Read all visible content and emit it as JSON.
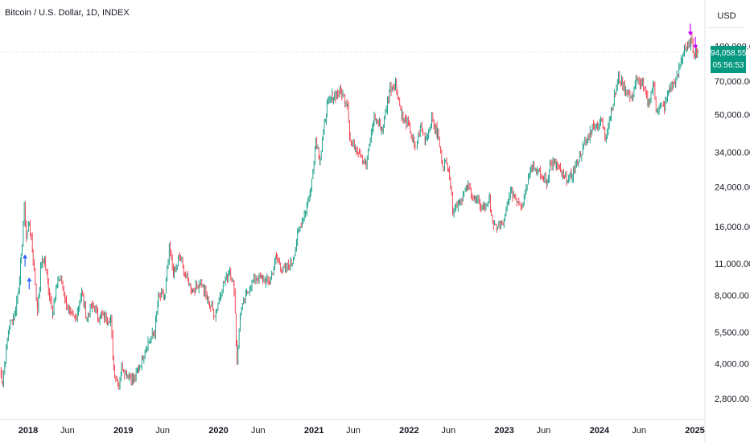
{
  "header": {
    "symbol_title": "Bitcoin / U.S. Dollar, 1D, INDEX",
    "currency": "USD"
  },
  "last_price": {
    "value": "94,058.55",
    "countdown": "05:56:53",
    "color": "#089981"
  },
  "colors": {
    "up": "#089981",
    "down": "#f23645",
    "marker_buy": "#2962ff",
    "marker_sell": "#c000ff"
  },
  "chart_data": {
    "type": "line",
    "scale": "log",
    "grid": false,
    "y_ticks": [
      {
        "value": 100000,
        "label": "100,000.00"
      },
      {
        "value": 70000,
        "label": "70,000.00"
      },
      {
        "value": 50000,
        "label": "50,000.00"
      },
      {
        "value": 34000,
        "label": "34,000.00"
      },
      {
        "value": 24000,
        "label": "24,000.00"
      },
      {
        "value": 16000,
        "label": "16,000.00"
      },
      {
        "value": 11000,
        "label": "11,000.00"
      },
      {
        "value": 8000,
        "label": "8,000.00"
      },
      {
        "value": 5500,
        "label": "5,500.00"
      },
      {
        "value": 4000,
        "label": "4,000.00"
      },
      {
        "value": 2800,
        "label": "2,800.00"
      }
    ],
    "x_ticks": [
      {
        "date": "2018-01-01",
        "label": "2018",
        "bold": true
      },
      {
        "date": "2018-06-01",
        "label": "Jun",
        "bold": false
      },
      {
        "date": "2019-01-01",
        "label": "2019",
        "bold": true
      },
      {
        "date": "2019-06-01",
        "label": "Jun",
        "bold": false
      },
      {
        "date": "2020-01-01",
        "label": "2020",
        "bold": true
      },
      {
        "date": "2020-06-01",
        "label": "Jun",
        "bold": false
      },
      {
        "date": "2021-01-01",
        "label": "2021",
        "bold": true
      },
      {
        "date": "2021-06-01",
        "label": "Jun",
        "bold": false
      },
      {
        "date": "2022-01-01",
        "label": "2022",
        "bold": true
      },
      {
        "date": "2022-06-01",
        "label": "Jun",
        "bold": false
      },
      {
        "date": "2023-01-01",
        "label": "2023",
        "bold": true
      },
      {
        "date": "2023-06-01",
        "label": "Jun",
        "bold": false
      },
      {
        "date": "2024-01-01",
        "label": "2024",
        "bold": true
      },
      {
        "date": "2024-06-01",
        "label": "Jun",
        "bold": false
      },
      {
        "date": "2025-01-01",
        "label": "2025",
        "bold": true
      }
    ],
    "x_range": [
      "2017-09-15",
      "2025-01-15"
    ],
    "y_range": [
      2400,
      125000
    ],
    "series": [
      {
        "points": [
          [
            "2017-09-15",
            3800
          ],
          [
            "2017-09-25",
            3300
          ],
          [
            "2017-10-05",
            4200
          ],
          [
            "2017-10-20",
            5900
          ],
          [
            "2017-11-10",
            6500
          ],
          [
            "2017-11-25",
            8600
          ],
          [
            "2017-12-05",
            11500
          ],
          [
            "2017-12-17",
            19500
          ],
          [
            "2017-12-25",
            14500
          ],
          [
            "2018-01-05",
            17000
          ],
          [
            "2018-01-20",
            11500
          ],
          [
            "2018-02-06",
            6900
          ],
          [
            "2018-02-20",
            11000
          ],
          [
            "2018-03-05",
            11400
          ],
          [
            "2018-03-20",
            8500
          ],
          [
            "2018-04-06",
            6800
          ],
          [
            "2018-04-25",
            9300
          ],
          [
            "2018-05-10",
            9300
          ],
          [
            "2018-05-28",
            7300
          ],
          [
            "2018-06-15",
            6400
          ],
          [
            "2018-07-01",
            6300
          ],
          [
            "2018-07-25",
            8200
          ],
          [
            "2018-08-15",
            6300
          ],
          [
            "2018-09-05",
            7300
          ],
          [
            "2018-09-25",
            6500
          ],
          [
            "2018-10-20",
            6450
          ],
          [
            "2018-11-14",
            6300
          ],
          [
            "2018-11-25",
            3800
          ],
          [
            "2018-12-15",
            3200
          ],
          [
            "2018-12-25",
            3900
          ],
          [
            "2019-01-15",
            3600
          ],
          [
            "2019-02-07",
            3400
          ],
          [
            "2019-03-01",
            3800
          ],
          [
            "2019-04-02",
            4900
          ],
          [
            "2019-05-01",
            5500
          ],
          [
            "2019-05-15",
            7800
          ],
          [
            "2019-06-10",
            8000
          ],
          [
            "2019-06-26",
            12800
          ],
          [
            "2019-07-15",
            9800
          ],
          [
            "2019-08-05",
            11800
          ],
          [
            "2019-08-28",
            9600
          ],
          [
            "2019-09-24",
            8400
          ],
          [
            "2019-10-25",
            9200
          ],
          [
            "2019-11-20",
            7600
          ],
          [
            "2019-12-18",
            6600
          ],
          [
            "2020-01-15",
            8700
          ],
          [
            "2020-02-13",
            10300
          ],
          [
            "2020-03-01",
            8600
          ],
          [
            "2020-03-12",
            4200
          ],
          [
            "2020-03-25",
            6700
          ],
          [
            "2020-04-30",
            8800
          ],
          [
            "2020-05-20",
            9500
          ],
          [
            "2020-06-15",
            9400
          ],
          [
            "2020-07-15",
            9200
          ],
          [
            "2020-08-10",
            11800
          ],
          [
            "2020-09-05",
            10200
          ],
          [
            "2020-10-10",
            11300
          ],
          [
            "2020-11-05",
            15500
          ],
          [
            "2020-12-01",
            19000
          ],
          [
            "2020-12-20",
            23500
          ],
          [
            "2021-01-08",
            39000
          ],
          [
            "2021-01-25",
            32000
          ],
          [
            "2021-02-20",
            55000
          ],
          [
            "2021-03-13",
            60000
          ],
          [
            "2021-04-14",
            63000
          ],
          [
            "2021-05-10",
            56000
          ],
          [
            "2021-05-20",
            38000
          ],
          [
            "2021-06-20",
            35000
          ],
          [
            "2021-07-20",
            30000
          ],
          [
            "2021-08-20",
            49000
          ],
          [
            "2021-09-20",
            43000
          ],
          [
            "2021-10-20",
            65000
          ],
          [
            "2021-11-10",
            68000
          ],
          [
            "2021-12-05",
            49000
          ],
          [
            "2022-01-05",
            43000
          ],
          [
            "2022-01-24",
            35000
          ],
          [
            "2022-02-15",
            44000
          ],
          [
            "2022-03-05",
            39000
          ],
          [
            "2022-03-29",
            47500
          ],
          [
            "2022-04-20",
            41000
          ],
          [
            "2022-05-09",
            30500
          ],
          [
            "2022-06-01",
            30000
          ],
          [
            "2022-06-18",
            19000
          ],
          [
            "2022-07-15",
            21000
          ],
          [
            "2022-08-15",
            24000
          ],
          [
            "2022-09-10",
            21000
          ],
          [
            "2022-10-15",
            19300
          ],
          [
            "2022-11-05",
            21000
          ],
          [
            "2022-11-21",
            15800
          ],
          [
            "2022-12-31",
            16600
          ],
          [
            "2023-01-25",
            23000
          ],
          [
            "2023-03-10",
            20000
          ],
          [
            "2023-04-14",
            30500
          ],
          [
            "2023-05-20",
            27000
          ],
          [
            "2023-06-15",
            25000
          ],
          [
            "2023-06-25",
            30500
          ],
          [
            "2023-07-20",
            30000
          ],
          [
            "2023-08-20",
            26000
          ],
          [
            "2023-09-15",
            26500
          ],
          [
            "2023-10-25",
            34500
          ],
          [
            "2023-12-05",
            44000
          ],
          [
            "2024-01-10",
            46500
          ],
          [
            "2024-01-23",
            39500
          ],
          [
            "2024-02-15",
            52000
          ],
          [
            "2024-03-14",
            72000
          ],
          [
            "2024-04-15",
            63000
          ],
          [
            "2024-05-01",
            58000
          ],
          [
            "2024-05-20",
            70000
          ],
          [
            "2024-06-10",
            69000
          ],
          [
            "2024-07-05",
            56000
          ],
          [
            "2024-07-28",
            68000
          ],
          [
            "2024-08-05",
            53000
          ],
          [
            "2024-09-06",
            54000
          ],
          [
            "2024-09-28",
            66000
          ],
          [
            "2024-10-20",
            69000
          ],
          [
            "2024-11-12",
            89000
          ],
          [
            "2024-11-22",
            99000
          ],
          [
            "2024-12-05",
            98000
          ],
          [
            "2024-12-17",
            106000
          ],
          [
            "2024-12-31",
            93500
          ],
          [
            "2025-01-07",
            96000
          ],
          [
            "2025-01-12",
            94058.55
          ]
        ]
      }
    ],
    "markers": [
      {
        "date": "2017-12-20",
        "value": 12000,
        "direction": "up"
      },
      {
        "date": "2018-01-05",
        "value": 9500,
        "direction": "up"
      },
      {
        "date": "2024-12-15",
        "value": 112000,
        "direction": "down"
      },
      {
        "date": "2025-01-03",
        "value": 98000,
        "direction": "down"
      }
    ]
  }
}
